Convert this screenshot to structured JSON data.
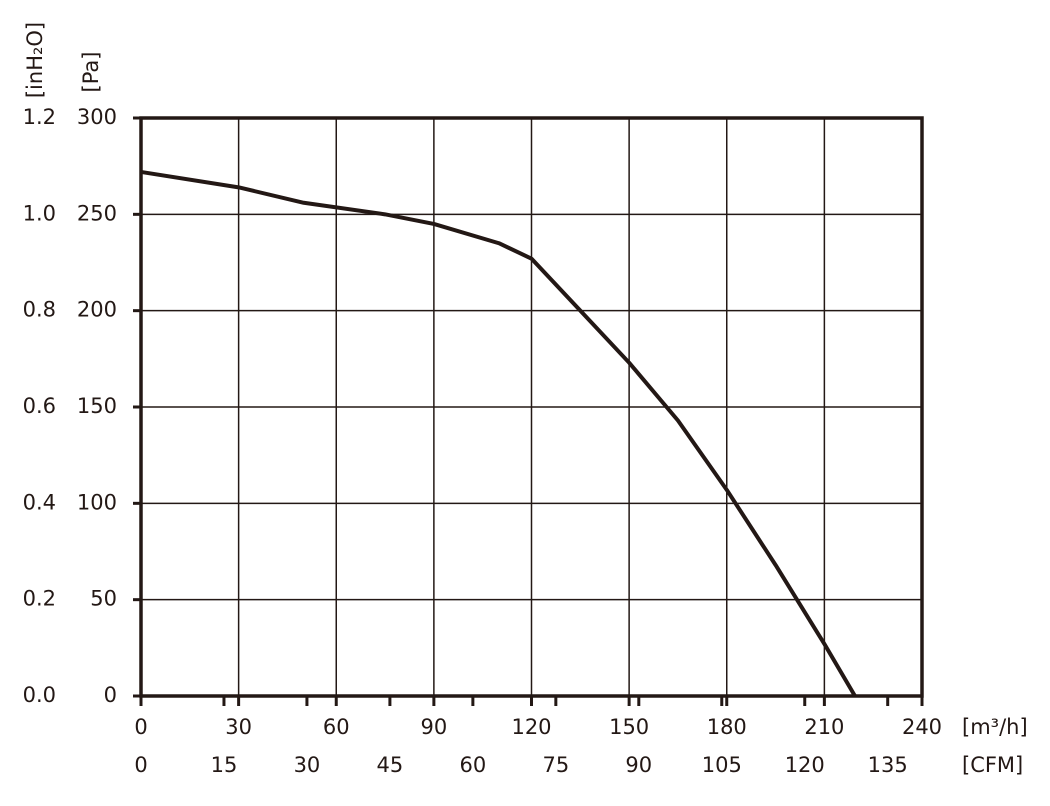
{
  "chart_data": {
    "type": "line",
    "x": [
      0,
      30,
      50,
      75,
      90,
      110,
      120,
      135,
      150,
      165,
      180,
      195,
      210,
      219.4
    ],
    "series": [
      {
        "color": "#231815",
        "values": [
          272,
          264,
          256,
          250,
          245,
          235,
          227,
          200,
          173,
          143,
          107,
          68,
          27,
          0
        ]
      }
    ],
    "xlim": [
      0,
      240
    ],
    "xticks": [
      0,
      30,
      60,
      90,
      120,
      150,
      180,
      210,
      240
    ],
    "x_label": "[m³/h]",
    "x2lim": [
      0,
      141.2
    ],
    "x2ticks": [
      0,
      15,
      30,
      45,
      60,
      75,
      90,
      105,
      120,
      135
    ],
    "x2_label": "[CFM]",
    "ylim": [
      0,
      300
    ],
    "yticks": [
      0,
      50,
      100,
      150,
      200,
      250,
      300
    ],
    "y_label": "[Pa]",
    "y2lim": [
      0,
      1.2
    ],
    "y2ticks": [
      {
        "value": 0,
        "label": "0.0"
      },
      {
        "value": 0.2,
        "label": "0.2"
      },
      {
        "value": 0.4,
        "label": "0.4"
      },
      {
        "value": 0.6,
        "label": "0.6"
      },
      {
        "value": 0.8,
        "label": "0.8"
      },
      {
        "value": 1,
        "label": "1.0"
      },
      {
        "value": 1.2,
        "label": "1.2"
      }
    ],
    "y2_label": "[inH₂O]",
    "grid": true
  }
}
